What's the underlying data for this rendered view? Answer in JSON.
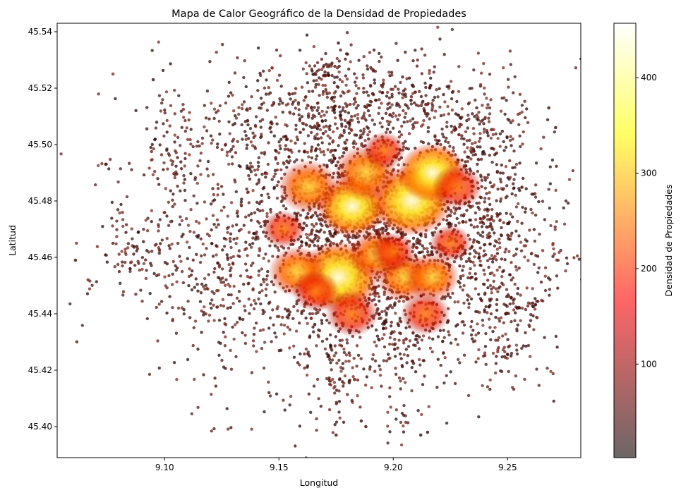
{
  "chart_data": {
    "type": "scatter",
    "title": "Mapa de Calor Geográfico de la Densidad de Propiedades",
    "xlabel": "Longitud",
    "ylabel": "Latitud",
    "xlim": [
      9.053,
      9.282
    ],
    "ylim": [
      45.389,
      45.543
    ],
    "xticks": [
      "9.10",
      "9.15",
      "9.20",
      "9.25"
    ],
    "xtick_values": [
      9.1,
      9.15,
      9.2,
      9.25
    ],
    "yticks": [
      "45.40",
      "45.42",
      "45.44",
      "45.46",
      "45.48",
      "45.50",
      "45.52",
      "45.54"
    ],
    "ytick_values": [
      45.4,
      45.42,
      45.44,
      45.46,
      45.48,
      45.5,
      45.52,
      45.54
    ],
    "grid": false,
    "colorbar": {
      "label": "Densidad de Propiedades",
      "range": [
        2,
        457
      ],
      "ticks": [
        "100",
        "200",
        "300",
        "400"
      ],
      "tick_values": [
        100,
        200,
        300,
        400
      ],
      "colormap": "hot",
      "alpha": 0.6
    },
    "density_hotspots": [
      {
        "x": 9.176,
        "y": 45.453,
        "density": 440
      },
      {
        "x": 9.208,
        "y": 45.48,
        "density": 430
      },
      {
        "x": 9.182,
        "y": 45.478,
        "density": 340
      },
      {
        "x": 9.217,
        "y": 45.49,
        "density": 320
      },
      {
        "x": 9.188,
        "y": 45.49,
        "density": 290
      },
      {
        "x": 9.163,
        "y": 45.485,
        "density": 270
      },
      {
        "x": 9.158,
        "y": 45.455,
        "density": 240
      },
      {
        "x": 9.205,
        "y": 45.453,
        "density": 240
      },
      {
        "x": 9.217,
        "y": 45.453,
        "density": 210
      },
      {
        "x": 9.193,
        "y": 45.461,
        "density": 230
      },
      {
        "x": 9.228,
        "y": 45.485,
        "density": 180
      },
      {
        "x": 9.214,
        "y": 45.44,
        "density": 170
      },
      {
        "x": 9.182,
        "y": 45.44,
        "density": 200
      },
      {
        "x": 9.166,
        "y": 45.448,
        "density": 150
      },
      {
        "x": 9.152,
        "y": 45.47,
        "density": 120
      },
      {
        "x": 9.196,
        "y": 45.498,
        "density": 110
      },
      {
        "x": 9.2,
        "y": 45.462,
        "density": 130
      },
      {
        "x": 9.225,
        "y": 45.465,
        "density": 110
      }
    ],
    "point_clusters": [
      {
        "x": 9.19,
        "y": 45.468,
        "spread_x": 0.03,
        "spread_y": 0.02,
        "count": 1500
      },
      {
        "x": 9.19,
        "y": 45.47,
        "spread_x": 0.046,
        "spread_y": 0.03,
        "count": 1600
      },
      {
        "x": 9.17,
        "y": 45.512,
        "spread_x": 0.012,
        "spread_y": 0.01,
        "count": 150
      },
      {
        "x": 9.2,
        "y": 45.515,
        "spread_x": 0.012,
        "spread_y": 0.008,
        "count": 140
      },
      {
        "x": 9.235,
        "y": 45.505,
        "spread_x": 0.012,
        "spread_y": 0.01,
        "count": 140
      },
      {
        "x": 9.14,
        "y": 45.505,
        "spread_x": 0.01,
        "spread_y": 0.01,
        "count": 110
      },
      {
        "x": 9.105,
        "y": 45.5,
        "spread_x": 0.008,
        "spread_y": 0.01,
        "count": 90
      },
      {
        "x": 9.1,
        "y": 45.46,
        "spread_x": 0.012,
        "spread_y": 0.008,
        "count": 80
      },
      {
        "x": 9.125,
        "y": 45.45,
        "spread_x": 0.008,
        "spread_y": 0.01,
        "count": 70
      },
      {
        "x": 9.243,
        "y": 45.47,
        "spread_x": 0.008,
        "spread_y": 0.015,
        "count": 100
      },
      {
        "x": 9.245,
        "y": 45.435,
        "spread_x": 0.008,
        "spread_y": 0.01,
        "count": 80
      },
      {
        "x": 9.172,
        "y": 45.425,
        "spread_x": 0.008,
        "spread_y": 0.01,
        "count": 70
      },
      {
        "x": 9.201,
        "y": 45.425,
        "spread_x": 0.006,
        "spread_y": 0.006,
        "count": 50
      },
      {
        "x": 9.17,
        "y": 45.526,
        "spread_x": 0.004,
        "spread_y": 0.003,
        "count": 30
      },
      {
        "x": 9.262,
        "y": 45.443,
        "spread_x": 0.002,
        "spread_y": 0.002,
        "count": 12
      },
      {
        "x": 9.25,
        "y": 45.426,
        "spread_x": 0.002,
        "spread_y": 0.002,
        "count": 10
      },
      {
        "x": 9.205,
        "y": 45.403,
        "spread_x": 0.004,
        "spread_y": 0.002,
        "count": 14
      },
      {
        "x": 9.178,
        "y": 45.413,
        "spread_x": 0.004,
        "spread_y": 0.003,
        "count": 16
      },
      {
        "x": 9.073,
        "y": 45.493,
        "spread_x": 0.002,
        "spread_y": 0.001,
        "count": 6
      },
      {
        "x": 9.068,
        "y": 45.45,
        "spread_x": 0.002,
        "spread_y": 0.002,
        "count": 6
      },
      {
        "x": 9.085,
        "y": 45.46,
        "spread_x": 0.006,
        "spread_y": 0.005,
        "count": 30
      },
      {
        "x": 9.08,
        "y": 45.478,
        "spread_x": 0.003,
        "spread_y": 0.004,
        "count": 10
      }
    ],
    "isolated_points": [
      {
        "x": 9.061,
        "y": 45.459
      },
      {
        "x": 9.095,
        "y": 45.523
      },
      {
        "x": 9.176,
        "y": 45.536
      },
      {
        "x": 9.268,
        "y": 45.513
      },
      {
        "x": 9.271,
        "y": 45.506
      },
      {
        "x": 9.175,
        "y": 45.397
      },
      {
        "x": 9.186,
        "y": 45.402
      },
      {
        "x": 9.188,
        "y": 45.4
      },
      {
        "x": 9.212,
        "y": 45.397
      },
      {
        "x": 9.215,
        "y": 45.398
      }
    ]
  }
}
